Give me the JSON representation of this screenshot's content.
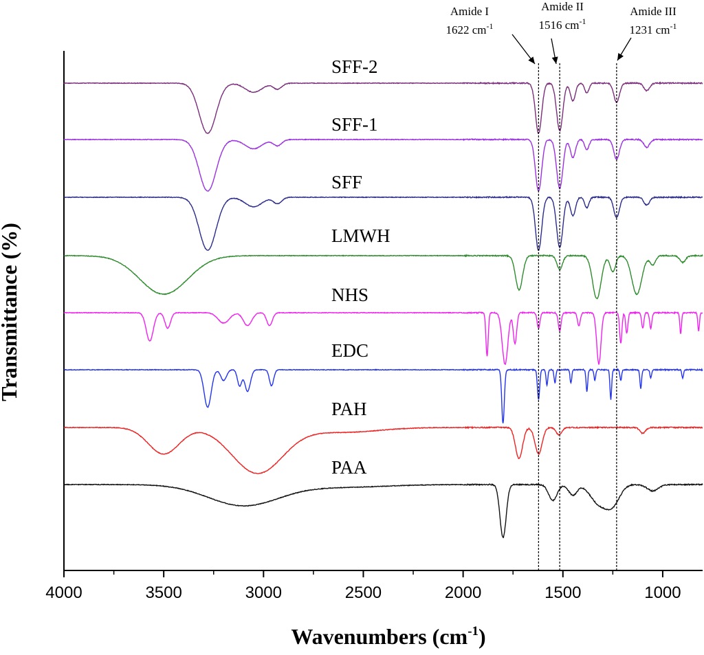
{
  "chart_data": {
    "type": "line",
    "title": "",
    "xlabel": "Wavenumbers (cm",
    "xlabel_sup": "-1",
    "xlabel_close": ")",
    "ylabel": "Transmittance (%)",
    "xlim": [
      4000,
      800
    ],
    "x_reversed": true,
    "xticks": [
      "4000",
      "3500",
      "3000",
      "2500",
      "2000",
      "1500",
      "1000"
    ],
    "xtick_values": [
      4000,
      3500,
      3000,
      2500,
      2000,
      1500,
      1000
    ],
    "y_ticks_shown": false,
    "series": [
      {
        "name": "SFF-2",
        "color": "#7b2d7b",
        "baseline": 0.0,
        "dips": [
          [
            3280,
            1.0,
            60
          ],
          [
            3050,
            0.18,
            60
          ],
          [
            2930,
            0.12,
            30
          ],
          [
            1622,
            1.0,
            22
          ],
          [
            1516,
            0.95,
            22
          ],
          [
            1450,
            0.35,
            18
          ],
          [
            1380,
            0.2,
            15
          ],
          [
            1231,
            0.38,
            20
          ],
          [
            1080,
            0.15,
            20
          ]
        ]
      },
      {
        "name": "SFF-1",
        "color": "#9b30e0",
        "baseline": 0.0,
        "dips": [
          [
            3280,
            1.0,
            60
          ],
          [
            3050,
            0.18,
            60
          ],
          [
            2930,
            0.12,
            30
          ],
          [
            1622,
            1.0,
            22
          ],
          [
            1516,
            0.95,
            22
          ],
          [
            1450,
            0.35,
            18
          ],
          [
            1380,
            0.2,
            15
          ],
          [
            1231,
            0.38,
            20
          ],
          [
            1080,
            0.15,
            20
          ]
        ]
      },
      {
        "name": "SFF",
        "color": "#2a2a8a",
        "baseline": 0.0,
        "dips": [
          [
            3280,
            1.0,
            60
          ],
          [
            3050,
            0.18,
            60
          ],
          [
            2930,
            0.12,
            30
          ],
          [
            1622,
            1.0,
            22
          ],
          [
            1516,
            0.95,
            22
          ],
          [
            1450,
            0.35,
            18
          ],
          [
            1380,
            0.2,
            15
          ],
          [
            1231,
            0.38,
            20
          ],
          [
            1080,
            0.15,
            20
          ]
        ]
      },
      {
        "name": "LMWH",
        "color": "#2e8b2e",
        "baseline": 0.0,
        "dips": [
          [
            3500,
            0.85,
            170
          ],
          [
            1720,
            0.75,
            25
          ],
          [
            1516,
            0.3,
            20
          ],
          [
            1330,
            0.95,
            30
          ],
          [
            1250,
            0.35,
            20
          ],
          [
            1130,
            0.85,
            35
          ],
          [
            1050,
            0.2,
            20
          ],
          [
            900,
            0.15,
            20
          ]
        ]
      },
      {
        "name": "NHS",
        "color": "#ee22ee",
        "baseline": 0.0,
        "dips": [
          [
            3570,
            0.55,
            25
          ],
          [
            3480,
            0.3,
            20
          ],
          [
            3200,
            0.2,
            40
          ],
          [
            3080,
            0.25,
            30
          ],
          [
            2970,
            0.25,
            20
          ],
          [
            1880,
            0.85,
            8
          ],
          [
            1790,
            1.0,
            20
          ],
          [
            1740,
            0.6,
            12
          ],
          [
            1622,
            0.3,
            10
          ],
          [
            1516,
            0.35,
            10
          ],
          [
            1420,
            0.25,
            10
          ],
          [
            1320,
            1.0,
            15
          ],
          [
            1210,
            0.6,
            8
          ],
          [
            1180,
            0.4,
            8
          ],
          [
            1100,
            0.3,
            8
          ],
          [
            1060,
            0.3,
            8
          ],
          [
            910,
            0.4,
            6
          ],
          [
            820,
            0.35,
            6
          ]
        ]
      },
      {
        "name": "EDC",
        "color": "#2233ee",
        "baseline": 0.0,
        "dips": [
          [
            3280,
            0.7,
            25
          ],
          [
            3200,
            0.2,
            20
          ],
          [
            3120,
            0.3,
            15
          ],
          [
            3080,
            0.4,
            20
          ],
          [
            2960,
            0.3,
            15
          ],
          [
            1800,
            1.0,
            9
          ],
          [
            1622,
            0.55,
            8
          ],
          [
            1580,
            0.3,
            6
          ],
          [
            1540,
            0.25,
            6
          ],
          [
            1460,
            0.25,
            6
          ],
          [
            1380,
            0.4,
            6
          ],
          [
            1340,
            0.2,
            6
          ],
          [
            1260,
            0.55,
            6
          ],
          [
            1210,
            0.2,
            6
          ],
          [
            1110,
            0.35,
            6
          ],
          [
            1060,
            0.15,
            6
          ],
          [
            900,
            0.15,
            6
          ]
        ]
      },
      {
        "name": "PAH",
        "color": "#ee2222",
        "baseline": 0.0,
        "dips": [
          [
            3500,
            0.55,
            110
          ],
          [
            3030,
            0.95,
            180
          ],
          [
            2600,
            0.1,
            250
          ],
          [
            1720,
            0.65,
            25
          ],
          [
            1622,
            0.55,
            25
          ],
          [
            1520,
            0.15,
            20
          ],
          [
            1100,
            0.12,
            20
          ]
        ]
      },
      {
        "name": "PAA",
        "color": "#111111",
        "baseline": 0.0,
        "dips": [
          [
            3100,
            0.4,
            250
          ],
          [
            2600,
            0.05,
            300
          ],
          [
            1800,
            1.0,
            22
          ],
          [
            1550,
            0.3,
            30
          ],
          [
            1450,
            0.2,
            30
          ],
          [
            1320,
            0.35,
            60
          ],
          [
            1250,
            0.35,
            50
          ],
          [
            1050,
            0.12,
            40
          ]
        ]
      }
    ],
    "annotations": [
      {
        "label": "Amide I",
        "value": "1622 cm",
        "sup": "-1",
        "x": 1622
      },
      {
        "label": "Amide II",
        "value": "1516 cm",
        "sup": "-1",
        "x": 1516
      },
      {
        "label": "Amide III",
        "value": "1231 cm",
        "sup": "-1",
        "x": 1231
      }
    ]
  }
}
